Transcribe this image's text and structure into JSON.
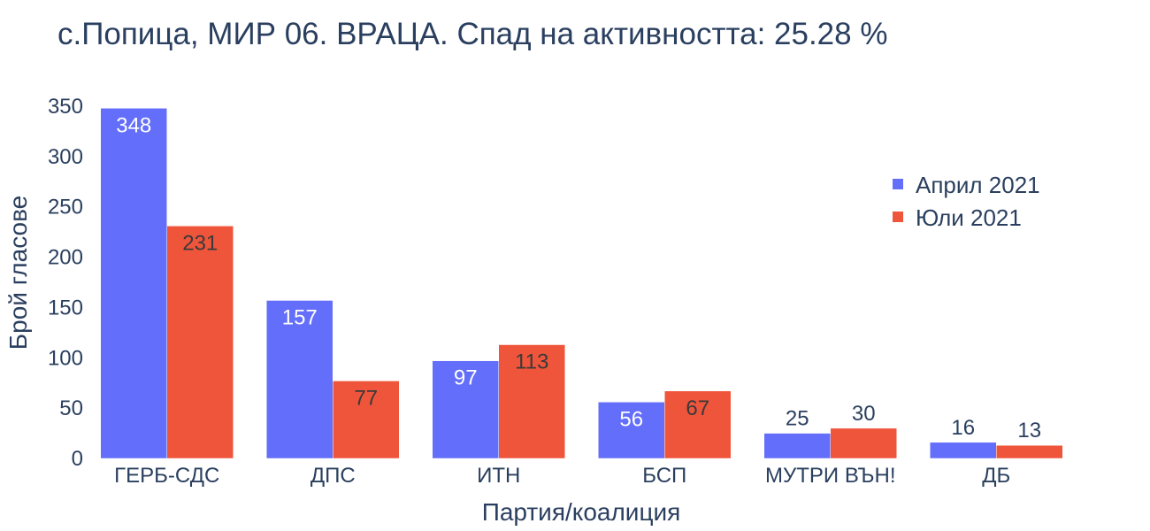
{
  "chart_data": {
    "type": "bar",
    "title": "с.Попица, МИР 06. ВРАЦА. Спад на активността: 25.28 %",
    "xlabel": "Партия/коалиция",
    "ylabel": "Брой гласове",
    "categories": [
      "ГЕРБ-СДС",
      "ДПС",
      "ИТН",
      "БСП",
      "МУТРИ ВЪН!",
      "ДБ"
    ],
    "series": [
      {
        "name": "Април 2021",
        "color": "#636efa",
        "values": [
          348,
          157,
          97,
          56,
          25,
          16
        ]
      },
      {
        "name": "Юли 2021",
        "color": "#ef553b",
        "values": [
          231,
          77,
          113,
          67,
          30,
          13
        ]
      }
    ],
    "ylim": [
      0,
      350
    ],
    "yticks": [
      0,
      50,
      100,
      150,
      200,
      250,
      300,
      350
    ],
    "grid": false,
    "legend_position": "top-right"
  }
}
